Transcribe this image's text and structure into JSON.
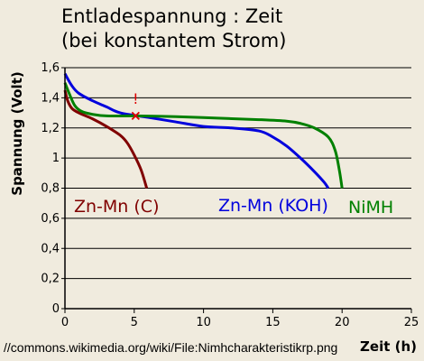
{
  "chart_data": {
    "type": "line",
    "title_lines": [
      "Entladespannung : Zeit",
      "(bei konstantem Strom)"
    ],
    "xlabel": "Zeit (h)",
    "ylabel": "Spannung (Volt)",
    "xlim": [
      0,
      25
    ],
    "ylim": [
      0,
      1.6
    ],
    "x_ticks": [
      0,
      5,
      10,
      15,
      20,
      25
    ],
    "x_tick_labels": [
      "0",
      "5",
      "10",
      "15",
      "20",
      "25"
    ],
    "y_ticks": [
      0,
      0.2,
      0.4,
      0.6,
      0.8,
      1.0,
      1.2,
      1.4,
      1.6
    ],
    "y_tick_labels": [
      "0",
      "0,2",
      "0,4",
      "0,6",
      "0,8",
      "1",
      "1,2",
      "1,4",
      "1,6"
    ],
    "grid": "horizontal",
    "series": [
      {
        "name": "Zn-Mn (C)",
        "color": "#800000",
        "points": [
          [
            0,
            1.45
          ],
          [
            0.2,
            1.38
          ],
          [
            0.5,
            1.33
          ],
          [
            1,
            1.3
          ],
          [
            2,
            1.26
          ],
          [
            3,
            1.21
          ],
          [
            4,
            1.15
          ],
          [
            4.5,
            1.1
          ],
          [
            5,
            1.02
          ],
          [
            5.5,
            0.92
          ],
          [
            5.9,
            0.8
          ]
        ]
      },
      {
        "name": "Zn-Mn (KOH)",
        "color": "#0000dd",
        "points": [
          [
            0,
            1.56
          ],
          [
            0.5,
            1.48
          ],
          [
            1,
            1.43
          ],
          [
            2,
            1.38
          ],
          [
            3,
            1.34
          ],
          [
            4,
            1.3
          ],
          [
            6,
            1.27
          ],
          [
            8,
            1.24
          ],
          [
            10,
            1.21
          ],
          [
            12,
            1.2
          ],
          [
            14,
            1.18
          ],
          [
            15,
            1.14
          ],
          [
            16,
            1.08
          ],
          [
            17,
            1.0
          ],
          [
            18,
            0.91
          ],
          [
            18.7,
            0.84
          ],
          [
            19,
            0.8
          ]
        ]
      },
      {
        "name": "NiMH",
        "color": "#008000",
        "points": [
          [
            0,
            1.5
          ],
          [
            0.3,
            1.43
          ],
          [
            0.7,
            1.35
          ],
          [
            1.2,
            1.31
          ],
          [
            2,
            1.29
          ],
          [
            3,
            1.28
          ],
          [
            5,
            1.28
          ],
          [
            8,
            1.275
          ],
          [
            11,
            1.265
          ],
          [
            14,
            1.255
          ],
          [
            16,
            1.245
          ],
          [
            17,
            1.23
          ],
          [
            18,
            1.2
          ],
          [
            19,
            1.14
          ],
          [
            19.5,
            1.05
          ],
          [
            19.8,
            0.92
          ],
          [
            20,
            0.8
          ]
        ]
      }
    ],
    "annotations": [
      {
        "marker": "x",
        "color": "#dd0000",
        "x": 5.1,
        "y": 1.28
      },
      {
        "text": "!",
        "color": "#dd0000",
        "x": 5.1,
        "y": 1.36
      }
    ]
  },
  "source": "//commons.wikimedia.org/wiki/File:Nimhcharakteristikrp.png"
}
